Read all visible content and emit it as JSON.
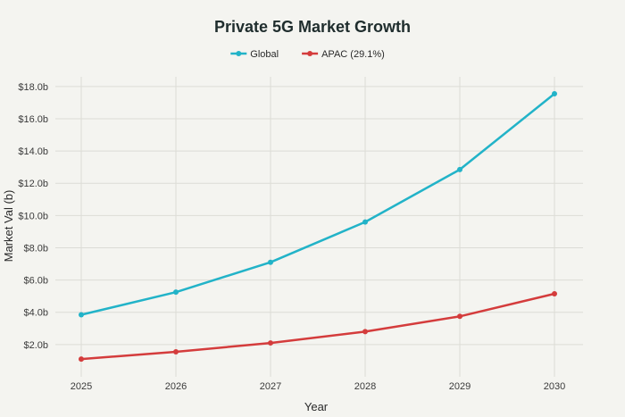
{
  "chart_data": {
    "type": "line",
    "title": "Private 5G Market Growth",
    "xlabel": "Year",
    "ylabel": "Market Val (b)",
    "x": [
      2025,
      2026,
      2027,
      2028,
      2029,
      2030
    ],
    "x_tick_labels": [
      "2025",
      "2026",
      "2027",
      "2028",
      "2029",
      "2030"
    ],
    "y_ticks": [
      2,
      4,
      6,
      8,
      10,
      12,
      14,
      16,
      18
    ],
    "y_tick_labels": [
      "$2.0b",
      "$4.0b",
      "$6.0b",
      "$8.0b",
      "$10.0b",
      "$12.0b",
      "$14.0b",
      "$16.0b",
      "$18.0b"
    ],
    "ylim": [
      0,
      18.6
    ],
    "grid": true,
    "legend_position": "top-center",
    "series": [
      {
        "name": "Global",
        "color": "#22b3c8",
        "values": [
          3.85,
          5.25,
          7.1,
          9.6,
          12.85,
          17.55
        ]
      },
      {
        "name": "APAC (29.1%)",
        "color": "#d43c3c",
        "values": [
          1.1,
          1.55,
          2.1,
          2.8,
          3.75,
          5.15
        ]
      }
    ]
  }
}
